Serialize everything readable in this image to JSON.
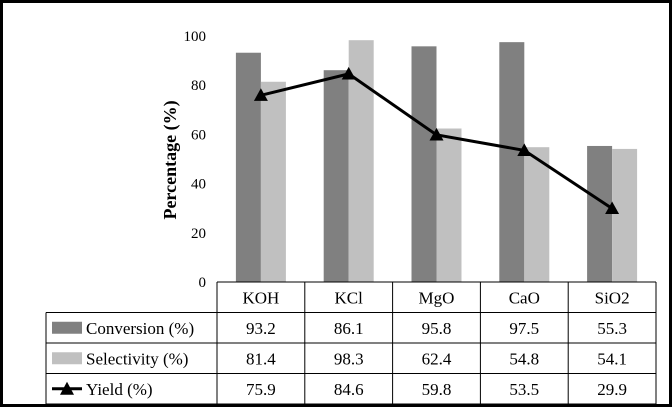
{
  "chart_data": {
    "type": "bar",
    "categories": [
      "KOH",
      "KCl",
      "MgO",
      "CaO",
      "SiO2"
    ],
    "series": [
      {
        "name": "Conversion (%)",
        "type": "bar",
        "color": "#808080",
        "values": [
          93.2,
          86.1,
          95.8,
          97.5,
          55.3
        ]
      },
      {
        "name": "Selectivity (%)",
        "type": "bar",
        "color": "#c0c0c0",
        "values": [
          81.4,
          98.3,
          62.4,
          54.8,
          54.1
        ]
      },
      {
        "name": "Yield (%)",
        "type": "line",
        "marker": "triangle",
        "color": "#000000",
        "values": [
          75.9,
          84.6,
          59.8,
          53.5,
          29.9
        ]
      }
    ],
    "ylabel": "Percentage (%)",
    "ylim": [
      0,
      100
    ],
    "yticks": [
      0,
      20,
      40,
      60,
      80,
      100
    ],
    "grid": false,
    "legend": "data-table-left",
    "data_table": {
      "rows": [
        {
          "label": "Conversion (%)",
          "values": [
            "93.2",
            "86.1",
            "95.8",
            "97.5",
            "55.3"
          ]
        },
        {
          "label": "Selectivity (%)",
          "values": [
            "81.4",
            "98.3",
            "62.4",
            "54.8",
            "54.1"
          ]
        },
        {
          "label": "Yield (%)",
          "values": [
            "75.9",
            "84.6",
            "59.8",
            "53.5",
            "29.9"
          ]
        }
      ]
    }
  }
}
